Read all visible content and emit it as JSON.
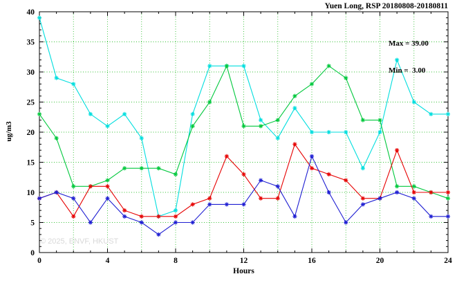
{
  "page": {
    "watermark": "© 2025, ENVF, HKUST"
  },
  "chart_data": {
    "type": "line",
    "title": "Yuen Long, RSP 20180808-20180811",
    "xlabel": "Hours",
    "ylabel": "ug/m3",
    "annotation": {
      "max": "Max = 39.00",
      "min": "Min =  3.00"
    },
    "xlim": [
      0,
      24
    ],
    "ylim": [
      0,
      40
    ],
    "x_major_tick_interval": 4,
    "x_minor_tick_interval": 1,
    "y_major_tick_interval": 5,
    "y_minor_tick_interval": 1,
    "grid": {
      "x_interval": 2,
      "y_interval": 5,
      "color": "#2fbf2f",
      "style": "dotted"
    },
    "legend": "none",
    "x": [
      0,
      1,
      2,
      3,
      4,
      5,
      6,
      7,
      8,
      9,
      10,
      11,
      12,
      13,
      14,
      15,
      16,
      17,
      18,
      19,
      20,
      21,
      22,
      23,
      24
    ],
    "series": [
      {
        "name": "cyan",
        "color": "#00dede",
        "values": [
          39,
          29,
          28,
          23,
          21,
          23,
          19,
          6,
          7,
          23,
          31,
          31,
          31,
          22,
          19,
          24,
          20,
          20,
          20,
          14,
          20,
          32,
          25,
          23,
          23
        ]
      },
      {
        "name": "green",
        "color": "#00c83c",
        "values": [
          23,
          19,
          11,
          11,
          12,
          14,
          14,
          14,
          13,
          21,
          25,
          31,
          21,
          21,
          22,
          26,
          28,
          31,
          29,
          22,
          22,
          11,
          11,
          10,
          9
        ]
      },
      {
        "name": "red",
        "color": "#e60000",
        "values": [
          9,
          10,
          6,
          11,
          11,
          7,
          6,
          6,
          6,
          8,
          9,
          16,
          13,
          9,
          9,
          18,
          14,
          13,
          12,
          9,
          9,
          17,
          10,
          10,
          10
        ]
      },
      {
        "name": "blue",
        "color": "#1e1ed2",
        "values": [
          9,
          10,
          9,
          5,
          9,
          6,
          5,
          3,
          5,
          5,
          8,
          8,
          8,
          12,
          11,
          6,
          16,
          10,
          5,
          8,
          9,
          10,
          9,
          6,
          6
        ]
      }
    ]
  }
}
